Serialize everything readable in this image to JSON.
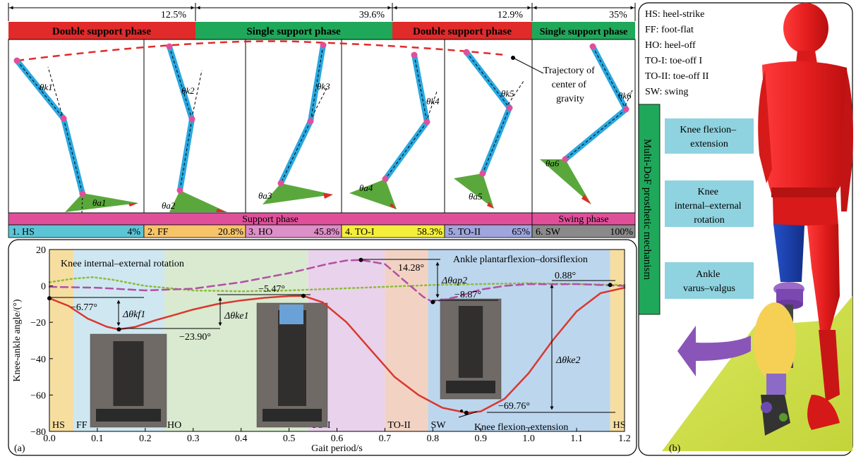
{
  "phase_percents": [
    "12.5%",
    "39.6%",
    "12.9%",
    "35%"
  ],
  "phase_bars": [
    {
      "label": "Double support phase",
      "color": "#e12a2a"
    },
    {
      "label": "Single support phase",
      "color": "#1fa85a"
    },
    {
      "label": "Double support phase",
      "color": "#e12a2a"
    },
    {
      "label": "Single support phase",
      "color": "#1fa85a"
    }
  ],
  "cog_label": [
    "Trajectory of",
    "center of",
    "gravity"
  ],
  "knee_angle_labels": [
    "θk1",
    "θk2",
    "θk3",
    "θk4",
    "θk5",
    "θk6"
  ],
  "ankle_angle_labels": [
    "θa1",
    "θa2",
    "θa3",
    "θa4",
    "θa5",
    "θa6"
  ],
  "support_phase_label": "Support phase",
  "swing_phase_label": "Swing phase",
  "stage_bars": [
    {
      "name": "1. HS",
      "pct": "4%",
      "color": "#5bc5d6"
    },
    {
      "name": "2. FF",
      "pct": "20.8%",
      "color": "#f7c46a"
    },
    {
      "name": "3. HO",
      "pct": "45.8%",
      "color": "#dd8fc7"
    },
    {
      "name": "4. TO-I",
      "pct": "58.3%",
      "color": "#f4ef3a"
    },
    {
      "name": "5. TO-II",
      "pct": "65%",
      "color": "#9fa6dd"
    },
    {
      "name": "6. SW",
      "pct": "100%",
      "color": "#8a8a8a"
    }
  ],
  "legend": [
    "HS: heel-strike",
    "FF: foot-flat",
    "HO: heel-off",
    "TO-I: toe-off I",
    "TO-II: toe-off II",
    "SW: swing"
  ],
  "mechanism_label": "Multi-DoF prosthetic mechanism",
  "dof_labels": [
    [
      "Knee flexion–",
      "extension"
    ],
    [
      "Knee",
      "internal–external",
      "rotation"
    ],
    [
      "Ankle",
      "varus–valgus"
    ]
  ],
  "colors": {
    "dof_box": "#8fd3e0",
    "mechanism_bar": "#1fa85a",
    "leg": "#2aa8e0",
    "joint": "#e0509a",
    "foot": "#5aa83c"
  },
  "panel_labels": [
    "(a)",
    "(b)"
  ],
  "chart_data": {
    "type": "line",
    "xlabel": "Gait period/s",
    "ylabel": "Knee-ankle angle/(°)",
    "xlim": [
      0,
      1.2
    ],
    "ylim": [
      -80,
      20
    ],
    "x_ticks": [
      "0.0",
      "0.1",
      "0.2",
      "0.3",
      "0.4",
      "0.5",
      "0.6",
      "0.7",
      "0.8",
      "0.9",
      "1.0",
      "1.1",
      "1.2"
    ],
    "y_ticks": [
      "20",
      "0",
      "-20",
      "-40",
      "-60",
      "-80"
    ],
    "phase_regions": [
      {
        "name": "HS",
        "start": 0.0,
        "end": 0.05,
        "color": "#f6dea0"
      },
      {
        "name": "FF",
        "start": 0.05,
        "end": 0.24,
        "color": "#cfe7f1"
      },
      {
        "name": "HO",
        "start": 0.24,
        "end": 0.54,
        "color": "#d9ead0"
      },
      {
        "name": "TO-I",
        "start": 0.54,
        "end": 0.7,
        "color": "#e9d2eb"
      },
      {
        "name": "TO-II",
        "start": 0.7,
        "end": 0.79,
        "color": "#f2d3c3"
      },
      {
        "name": "SW",
        "start": 0.79,
        "end": 1.17,
        "color": "#bcd6ee"
      },
      {
        "name": "HS",
        "start": 1.17,
        "end": 1.2,
        "color": "#f6dea0"
      }
    ],
    "series": [
      {
        "name": "Knee flexion–extension",
        "color": "#d9382f",
        "dash": "solid",
        "x": [
          0.0,
          0.04,
          0.08,
          0.12,
          0.145,
          0.18,
          0.22,
          0.26,
          0.3,
          0.35,
          0.4,
          0.45,
          0.5,
          0.53,
          0.57,
          0.62,
          0.67,
          0.72,
          0.77,
          0.82,
          0.87,
          0.9,
          0.95,
          1.0,
          1.05,
          1.1,
          1.15,
          1.2
        ],
        "y": [
          -6.77,
          -11,
          -18,
          -22.5,
          -23.9,
          -22.5,
          -19,
          -16,
          -13,
          -10,
          -8,
          -6.5,
          -5.6,
          -5.47,
          -9,
          -20,
          -35,
          -50,
          -60,
          -67,
          -69.76,
          -69,
          -62,
          -48,
          -30,
          -14,
          -4,
          -1
        ]
      },
      {
        "name": "Knee internal–external rotation",
        "color": "#8dbb3c",
        "dash": "dot",
        "x": [
          0.0,
          0.05,
          0.09,
          0.13,
          0.2,
          0.3,
          0.4,
          0.5,
          0.6,
          0.7,
          0.8,
          0.9,
          1.0,
          1.1,
          1.2
        ],
        "y": [
          2,
          4,
          4.8,
          3.5,
          0,
          -2.5,
          -3,
          -2.5,
          -1.5,
          -0.5,
          0.5,
          1,
          1.5,
          1,
          0.5
        ]
      },
      {
        "name": "Ankle plantarflexion–dorsiflexion",
        "color": "#b34fa6",
        "dash": "dash",
        "x": [
          0.0,
          0.1,
          0.2,
          0.3,
          0.4,
          0.5,
          0.58,
          0.62,
          0.65,
          0.7,
          0.74,
          0.78,
          0.8,
          0.85,
          0.9,
          0.95,
          1.0,
          1.05,
          1.1,
          1.15,
          1.2
        ],
        "y": [
          -0.5,
          -1,
          -2.5,
          -1.5,
          2,
          7,
          12,
          14,
          14.28,
          12,
          3,
          -6,
          -8.87,
          -6,
          -2,
          0,
          1,
          0.88,
          1,
          0.5,
          0
        ]
      }
    ],
    "annotations": [
      "−6.77°",
      "−23.90°",
      "−5.47°",
      "14.28°",
      "−8.87°",
      "0.88°",
      "−69.76°"
    ],
    "delta_labels": [
      "Δθkf1",
      "Δθke1",
      "Δθap2",
      "Δθke2"
    ]
  }
}
